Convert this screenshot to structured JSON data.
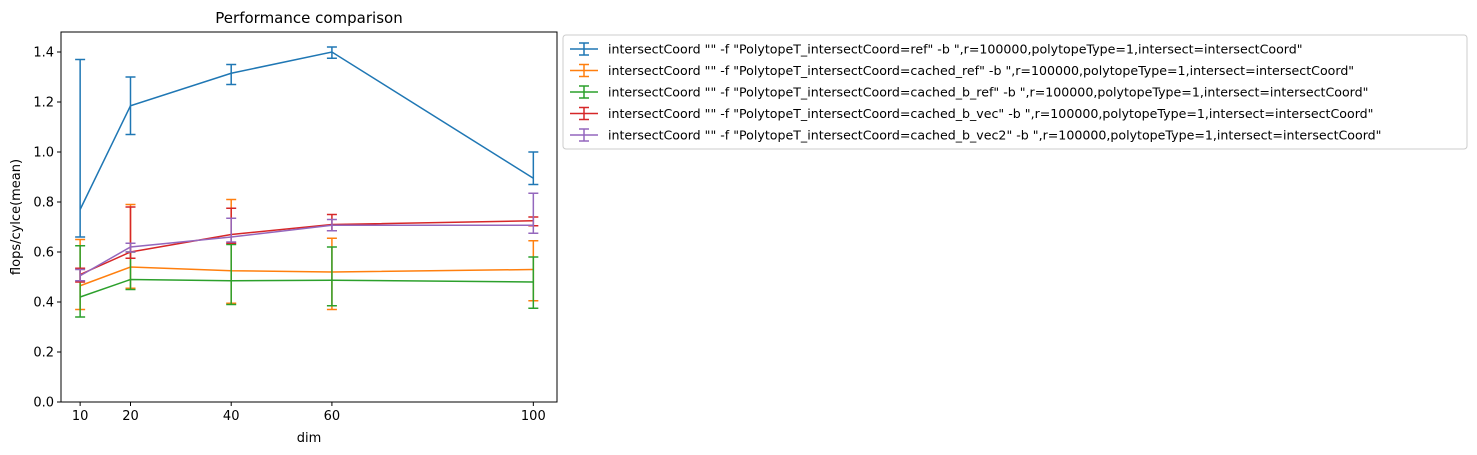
{
  "chart_data": {
    "type": "line",
    "title": "Performance comparison",
    "xlabel": "dim",
    "ylabel": "flops/cylce(mean)",
    "x": [
      10,
      20,
      40,
      60,
      100
    ],
    "xticks": [
      "10",
      "20",
      "40",
      "60",
      "100"
    ],
    "yticks": [
      "0.0",
      "0.2",
      "0.4",
      "0.6",
      "0.8",
      "1.0",
      "1.2",
      "1.4"
    ],
    "xlim": [
      6.2,
      104.7
    ],
    "ylim": [
      0.0,
      1.48
    ],
    "grid": false,
    "error_bars": true,
    "legend_position": "outside-upper-right",
    "series": [
      {
        "name": "intersectCoord \"\" -f \"PolytopeT_intersectCoord=ref\" -b \",r=100000,polytopeType=1,intersect=intersectCoord\"",
        "color": "#1f77b4",
        "values": [
          0.77,
          1.185,
          1.315,
          1.4,
          0.895
        ],
        "err_low": [
          0.66,
          1.07,
          1.27,
          1.375,
          0.87
        ],
        "err_high": [
          1.37,
          1.3,
          1.35,
          1.42,
          1.0
        ]
      },
      {
        "name": "intersectCoord \"\" -f \"PolytopeT_intersectCoord=cached_ref\" -b \",r=100000,polytopeType=1,intersect=intersectCoord\"",
        "color": "#ff7f0e",
        "values": [
          0.465,
          0.54,
          0.525,
          0.52,
          0.53
        ],
        "err_low": [
          0.37,
          0.455,
          0.395,
          0.37,
          0.405
        ],
        "err_high": [
          0.65,
          0.79,
          0.81,
          0.655,
          0.645
        ]
      },
      {
        "name": "intersectCoord \"\" -f \"PolytopeT_intersectCoord=cached_b_ref\" -b \",r=100000,polytopeType=1,intersect=intersectCoord\"",
        "color": "#2ca02c",
        "values": [
          0.42,
          0.49,
          0.485,
          0.487,
          0.48
        ],
        "err_low": [
          0.34,
          0.45,
          0.39,
          0.385,
          0.375
        ],
        "err_high": [
          0.625,
          0.6,
          0.63,
          0.62,
          0.58
        ]
      },
      {
        "name": "intersectCoord \"\" -f \"PolytopeT_intersectCoord=cached_b_vec\" -b \",r=100000,polytopeType=1,intersect=intersectCoord\"",
        "color": "#d62728",
        "values": [
          0.51,
          0.6,
          0.67,
          0.71,
          0.725
        ],
        "err_low": [
          0.48,
          0.575,
          0.635,
          0.685,
          0.705
        ],
        "err_high": [
          0.535,
          0.78,
          0.775,
          0.75,
          0.74
        ]
      },
      {
        "name": "intersectCoord \"\" -f \"PolytopeT_intersectCoord=cached_b_vec2\" -b \",r=100000,polytopeType=1,intersect=intersectCoord\"",
        "color": "#9467bd",
        "values": [
          0.505,
          0.62,
          0.66,
          0.707,
          0.707
        ],
        "err_low": [
          0.485,
          0.6,
          0.64,
          0.685,
          0.675
        ],
        "err_high": [
          0.53,
          0.635,
          0.735,
          0.73,
          0.835
        ]
      }
    ]
  }
}
